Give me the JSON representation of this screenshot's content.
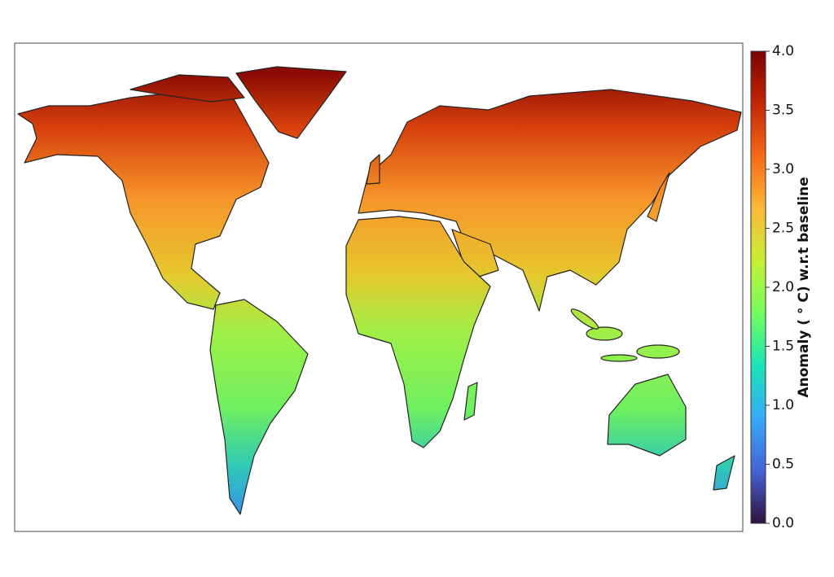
{
  "chart_data": {
    "type": "map",
    "colorbar": {
      "label": "Anomaly ( ° C) w.r.t baseline",
      "lim": [
        0,
        4
      ],
      "ticks": [
        {
          "value": 0,
          "label": "0.0"
        },
        {
          "value": 0.5,
          "label": "0.5"
        },
        {
          "value": 1,
          "label": "1.0"
        },
        {
          "value": 1.5,
          "label": "1.5"
        },
        {
          "value": 2,
          "label": "2.0"
        },
        {
          "value": 2.5,
          "label": "2.5"
        },
        {
          "value": 3,
          "label": "3.0"
        },
        {
          "value": 3.5,
          "label": "3.5"
        },
        {
          "value": 4,
          "label": "4.0"
        }
      ],
      "colors": [
        "#30123b",
        "#4662d7",
        "#36aaf9",
        "#1ae4b6",
        "#72fe5e",
        "#c7ef34",
        "#fbb938",
        "#f56918",
        "#c42503",
        "#7a0403"
      ]
    }
  }
}
